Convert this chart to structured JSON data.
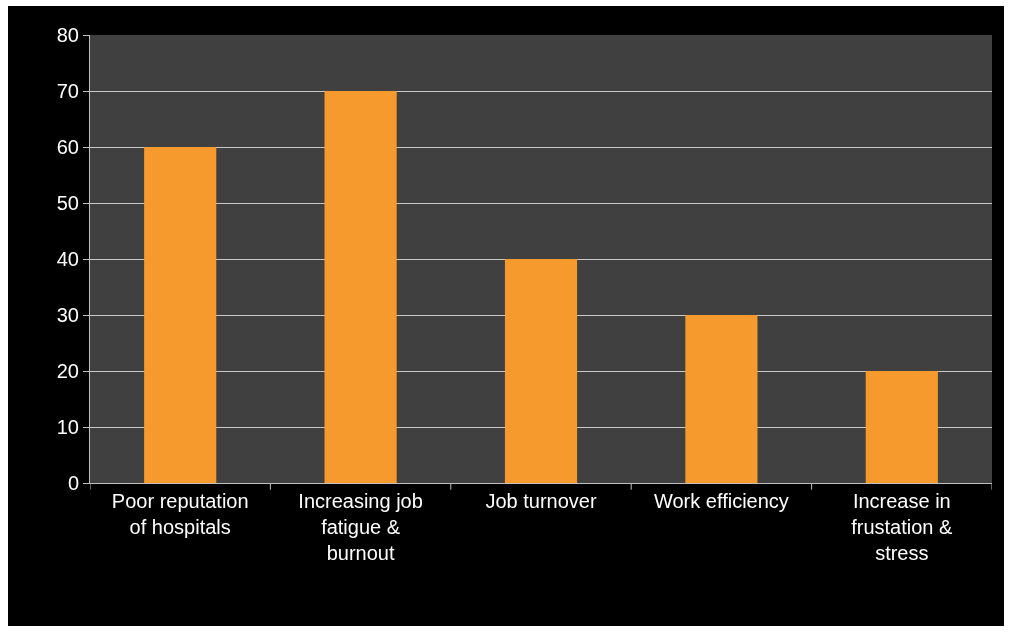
{
  "chart_data": {
    "type": "bar",
    "categories": [
      "Poor reputation of hospitals",
      "Increasing job fatigue & burnout",
      "Job turnover",
      "Work efficiency",
      "Increase in frustation & stress"
    ],
    "values": [
      60,
      70,
      40,
      30,
      20
    ],
    "color": "#f79a2e",
    "ylim": [
      0,
      80
    ],
    "yticks": [
      0,
      10,
      20,
      30,
      40,
      50,
      60,
      70,
      80
    ],
    "grid": "y"
  }
}
